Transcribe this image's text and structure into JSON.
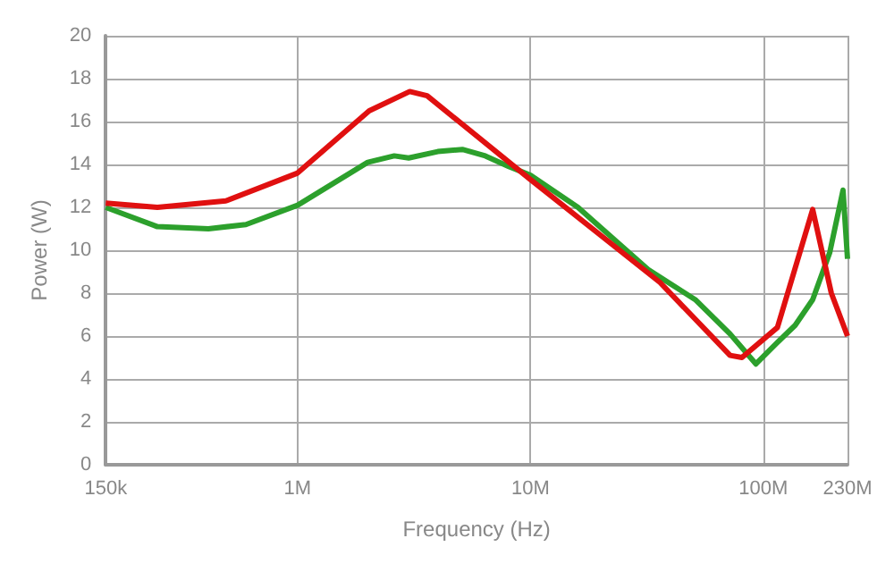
{
  "chart_data": {
    "type": "line",
    "xlabel": "Frequency (Hz)",
    "ylabel": "Power (W)",
    "xlim": [
      150000,
      230000000
    ],
    "ylim": [
      0,
      20
    ],
    "xticks": [
      {
        "value": 150000,
        "label": "150k"
      },
      {
        "value": 1000000,
        "label": "1M"
      },
      {
        "value": 10000000,
        "label": "10M"
      },
      {
        "value": 100000000,
        "label": "100M"
      },
      {
        "value": 230000000,
        "label": "230M"
      }
    ],
    "yticks": [
      0,
      2,
      4,
      6,
      8,
      10,
      12,
      14,
      16,
      18,
      20
    ],
    "log": "x",
    "grid": true,
    "marker": "none",
    "line_style": "solid",
    "series": [
      {
        "color": "#2ca02c",
        "x": [
          150000,
          250000,
          414000,
          600000,
          1000000,
          2000000,
          2600000,
          3000000,
          4000000,
          5100000,
          6400000,
          8100000,
          10000000,
          16000000,
          32000000,
          51000000,
          72000000,
          93000000,
          115000000,
          137000000,
          163000000,
          193000000,
          220000000,
          230000000
        ],
        "values": [
          12.0,
          11.1,
          11.0,
          11.2,
          12.1,
          14.1,
          14.4,
          14.3,
          14.6,
          14.7,
          14.4,
          13.9,
          13.5,
          12.0,
          9.1,
          7.7,
          6.1,
          4.7,
          5.7,
          6.5,
          7.7,
          9.9,
          12.8,
          9.6
        ]
      },
      {
        "color": "#e01010",
        "x": [
          150000,
          250000,
          492000,
          1000000,
          2030000,
          3030000,
          3600000,
          10000000,
          36000000,
          72000000,
          81000000,
          115000000,
          163000000,
          196000000,
          230000000
        ],
        "values": [
          12.2,
          12.0,
          12.3,
          13.6,
          16.5,
          17.4,
          17.2,
          13.3,
          8.5,
          5.1,
          5.0,
          6.4,
          11.9,
          8.0,
          6.0
        ]
      }
    ]
  }
}
